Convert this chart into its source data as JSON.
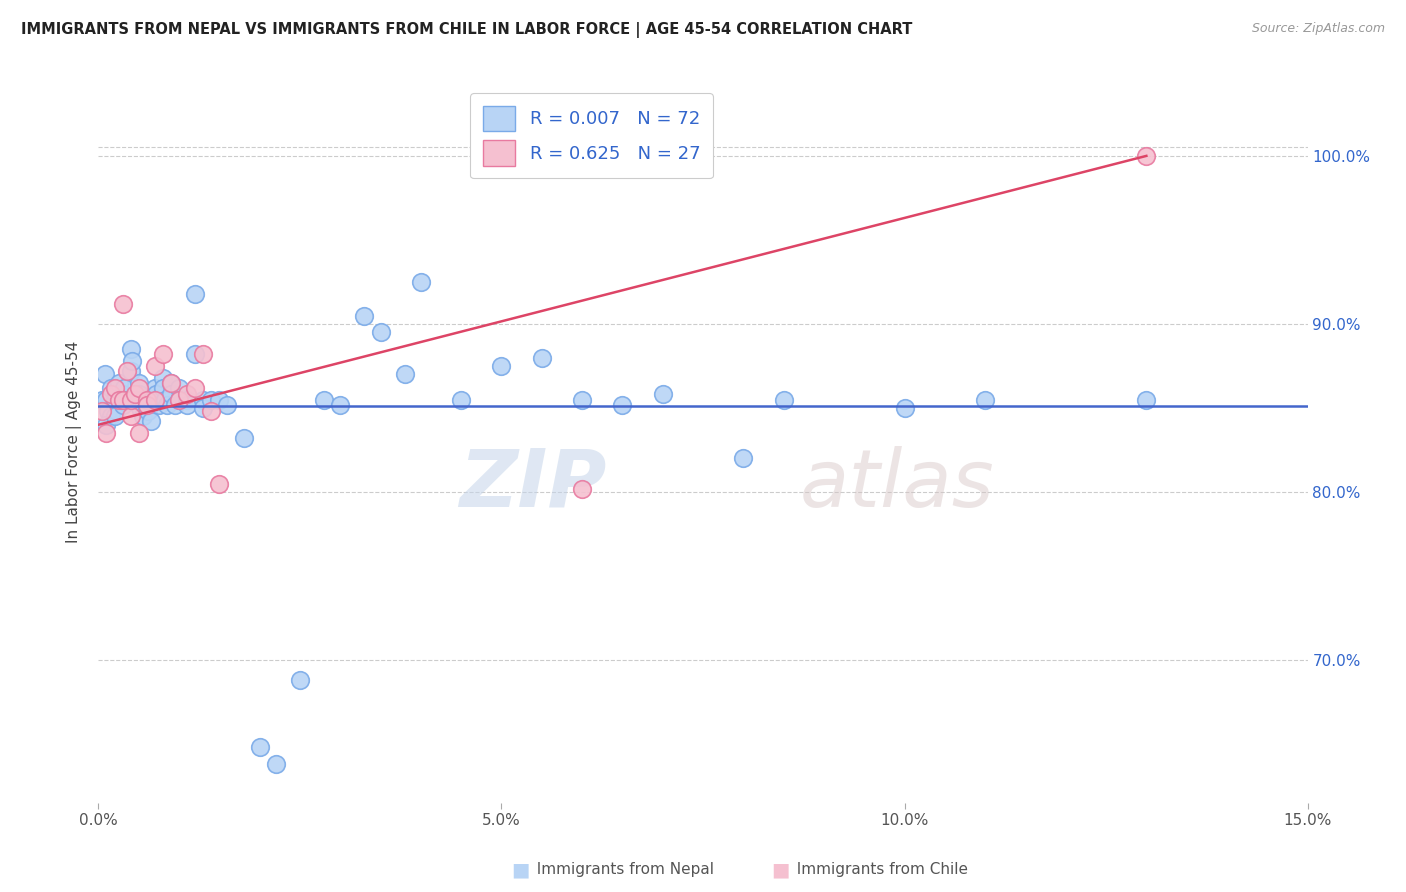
{
  "title": "IMMIGRANTS FROM NEPAL VS IMMIGRANTS FROM CHILE IN LABOR FORCE | AGE 45-54 CORRELATION CHART",
  "source": "Source: ZipAtlas.com",
  "ylabel": "In Labor Force | Age 45-54",
  "x_min": 0.0,
  "x_max": 0.15,
  "y_min": 0.615,
  "y_max": 1.045,
  "x_ticks": [
    0.0,
    0.05,
    0.1,
    0.15
  ],
  "x_tick_labels": [
    "0.0%",
    "5.0%",
    "10.0%",
    "15.0%"
  ],
  "y_ticks": [
    0.7,
    0.8,
    0.9,
    1.0
  ],
  "y_tick_labels_right": [
    "70.0%",
    "80.0%",
    "90.0%",
    "100.0%"
  ],
  "nepal_color": "#b8d4f5",
  "nepal_edge_color": "#7aaae8",
  "chile_color": "#f5c0d0",
  "chile_edge_color": "#e87aa0",
  "nepal_line_color": "#4466cc",
  "chile_line_color": "#dd4466",
  "nepal_R": 0.007,
  "nepal_N": 72,
  "chile_R": 0.625,
  "chile_N": 27,
  "watermark": "ZIPatlas",
  "nepal_x": [
    0.0005,
    0.0008,
    0.001,
    0.0012,
    0.0015,
    0.001,
    0.0015,
    0.002,
    0.002,
    0.0022,
    0.0025,
    0.003,
    0.003,
    0.003,
    0.0032,
    0.0035,
    0.004,
    0.004,
    0.0042,
    0.0045,
    0.005,
    0.005,
    0.005,
    0.0052,
    0.0055,
    0.006,
    0.006,
    0.0062,
    0.0065,
    0.007,
    0.007,
    0.0072,
    0.0075,
    0.008,
    0.008,
    0.0082,
    0.0085,
    0.009,
    0.009,
    0.0095,
    0.01,
    0.01,
    0.011,
    0.011,
    0.012,
    0.012,
    0.013,
    0.013,
    0.014,
    0.015,
    0.016,
    0.018,
    0.02,
    0.022,
    0.025,
    0.028,
    0.03,
    0.033,
    0.035,
    0.038,
    0.04,
    0.045,
    0.05,
    0.055,
    0.06,
    0.065,
    0.07,
    0.08,
    0.085,
    0.1,
    0.11,
    0.13
  ],
  "nepal_y": [
    0.855,
    0.87,
    0.855,
    0.848,
    0.845,
    0.84,
    0.862,
    0.855,
    0.845,
    0.858,
    0.865,
    0.852,
    0.858,
    0.855,
    0.862,
    0.855,
    0.872,
    0.885,
    0.878,
    0.855,
    0.865,
    0.858,
    0.855,
    0.85,
    0.845,
    0.855,
    0.852,
    0.848,
    0.842,
    0.862,
    0.855,
    0.858,
    0.852,
    0.868,
    0.862,
    0.855,
    0.852,
    0.865,
    0.858,
    0.852,
    0.862,
    0.855,
    0.855,
    0.852,
    0.918,
    0.882,
    0.855,
    0.85,
    0.855,
    0.855,
    0.852,
    0.832,
    0.648,
    0.638,
    0.688,
    0.855,
    0.852,
    0.905,
    0.895,
    0.87,
    0.925,
    0.855,
    0.875,
    0.88,
    0.855,
    0.852,
    0.858,
    0.82,
    0.855,
    0.85,
    0.855,
    0.855
  ],
  "chile_x": [
    0.0005,
    0.001,
    0.0015,
    0.002,
    0.0025,
    0.003,
    0.003,
    0.0035,
    0.004,
    0.004,
    0.0045,
    0.005,
    0.005,
    0.006,
    0.006,
    0.007,
    0.007,
    0.008,
    0.009,
    0.01,
    0.011,
    0.012,
    0.013,
    0.014,
    0.015,
    0.06,
    0.13
  ],
  "chile_y": [
    0.848,
    0.835,
    0.858,
    0.862,
    0.855,
    0.912,
    0.855,
    0.872,
    0.845,
    0.855,
    0.858,
    0.862,
    0.835,
    0.855,
    0.852,
    0.875,
    0.855,
    0.882,
    0.865,
    0.855,
    0.858,
    0.862,
    0.882,
    0.848,
    0.805,
    0.802,
    1.0
  ],
  "bottom_legend_nepal_label": "Immigrants from Nepal",
  "bottom_legend_chile_label": "Immigrants from Chile"
}
